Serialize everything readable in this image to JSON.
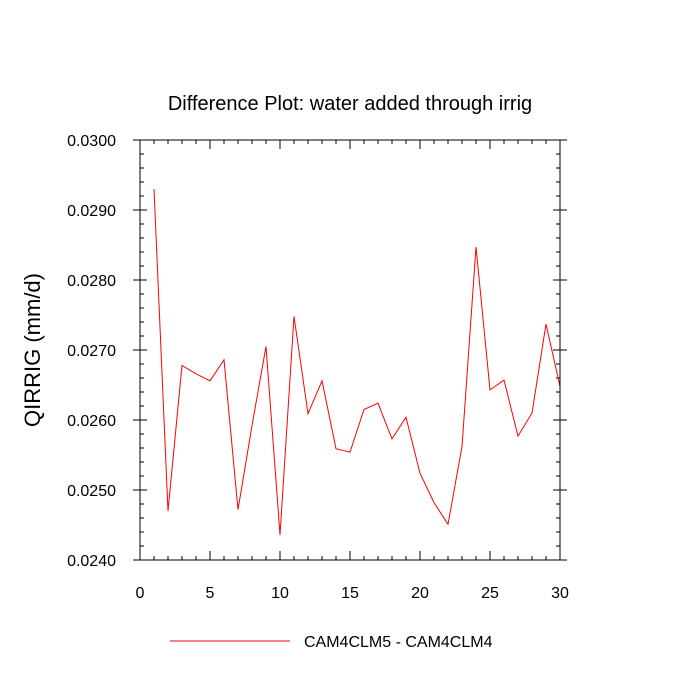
{
  "chart_data": {
    "type": "line",
    "title": "Difference Plot: water added through irrig",
    "xlabel": "",
    "ylabel": "QIRRIG  (mm/d)",
    "xlim": [
      0,
      30
    ],
    "ylim": [
      0.024,
      0.03
    ],
    "x_ticks": [
      0,
      5,
      10,
      15,
      20,
      25,
      30
    ],
    "x_tick_labels": [
      "0",
      "5",
      "10",
      "15",
      "20",
      "25",
      "30"
    ],
    "y_ticks": [
      0.024,
      0.025,
      0.026,
      0.027,
      0.028,
      0.029,
      0.03
    ],
    "y_tick_labels": [
      "0.0240",
      "0.0250",
      "0.0260",
      "0.0270",
      "0.0280",
      "0.0290",
      "0.0300"
    ],
    "grid": false,
    "legend_position": "bottom",
    "series": [
      {
        "name": "CAM4CLM5 - CAM4CLM4",
        "color": "#ff0000",
        "x": [
          1,
          2,
          3,
          4,
          5,
          6,
          7,
          8,
          9,
          10,
          11,
          12,
          13,
          14,
          15,
          16,
          17,
          18,
          19,
          20,
          21,
          22,
          23,
          24,
          25,
          26,
          27,
          28,
          29,
          30
        ],
        "y": [
          0.0293,
          0.0247,
          0.02678,
          0.02666,
          0.02656,
          0.02686,
          0.02472,
          0.02592,
          0.02705,
          0.02436,
          0.02748,
          0.02609,
          0.02656,
          0.02559,
          0.02554,
          0.02615,
          0.02624,
          0.02573,
          0.02604,
          0.02524,
          0.02482,
          0.02451,
          0.02562,
          0.02847,
          0.02643,
          0.02657,
          0.02577,
          0.0261,
          0.02737,
          0.02648
        ]
      }
    ]
  }
}
